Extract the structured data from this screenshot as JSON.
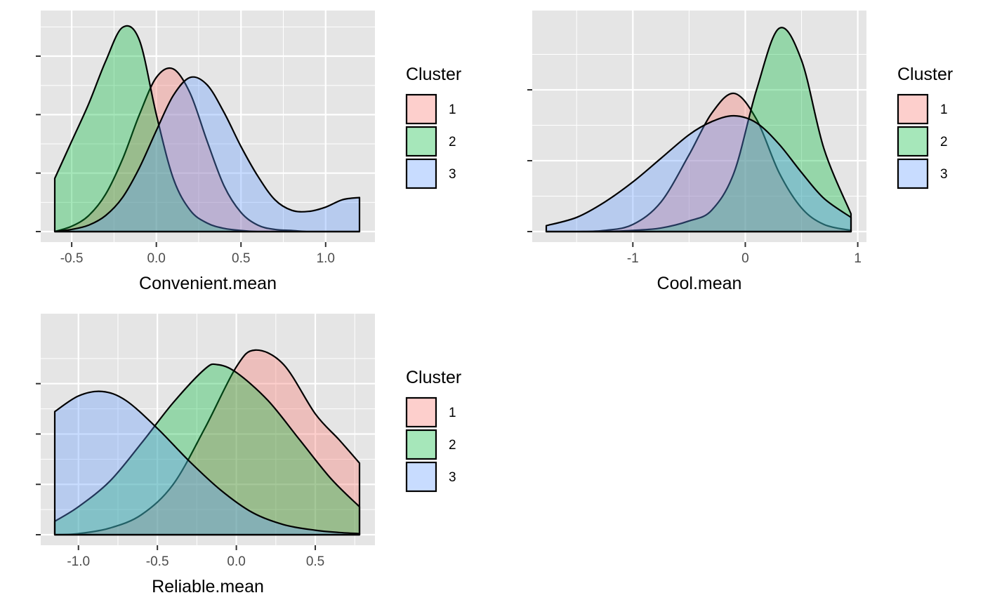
{
  "legend_title": "Cluster",
  "series_names": [
    "1",
    "2",
    "3"
  ],
  "colors": {
    "series": [
      "#F8766D",
      "#00BA38",
      "#619CFF"
    ],
    "panel_background": "#E5E5E5",
    "grid": "#FFFFFF",
    "outline": "#000000"
  },
  "chart_data": [
    {
      "type": "area",
      "subtype": "density",
      "title": "",
      "xlabel": "Convenient.mean",
      "ylabel": "",
      "xlim": [
        -0.6,
        1.2
      ],
      "ylim": [
        0,
        2.0
      ],
      "x_ticks": [
        -0.5,
        0.0,
        0.5,
        1.0
      ],
      "x_tick_labels": [
        "-0.5",
        "0.0",
        "0.5",
        "1.0"
      ],
      "y_ticks": [
        0,
        0.55,
        1.1,
        1.65
      ],
      "y_tick_labels": [
        "",
        "",
        "",
        ""
      ],
      "grid": true,
      "legend_position": "right",
      "series": [
        {
          "name": "1",
          "x": [
            -0.6,
            -0.5,
            -0.4,
            -0.3,
            -0.2,
            -0.1,
            0.0,
            0.1,
            0.2,
            0.3,
            0.4,
            0.5,
            0.6,
            0.7,
            0.8,
            0.9,
            1.0,
            1.1,
            1.2
          ],
          "y": [
            0.0,
            0.05,
            0.15,
            0.35,
            0.68,
            1.1,
            1.45,
            1.53,
            1.3,
            0.85,
            0.43,
            0.18,
            0.06,
            0.02,
            0.01,
            0.0,
            0.0,
            0.0,
            0.0
          ]
        },
        {
          "name": "2",
          "x": [
            -0.6,
            -0.5,
            -0.4,
            -0.3,
            -0.2,
            -0.1,
            0.0,
            0.1,
            0.2,
            0.3,
            0.4,
            0.5,
            0.6,
            0.7,
            0.8,
            0.9,
            1.0,
            1.1,
            1.2
          ],
          "y": [
            0.5,
            0.85,
            1.2,
            1.6,
            1.92,
            1.8,
            1.1,
            0.5,
            0.2,
            0.08,
            0.03,
            0.01,
            0.0,
            0.0,
            0.0,
            0.0,
            0.0,
            0.0,
            0.0
          ]
        },
        {
          "name": "3",
          "x": [
            -0.6,
            -0.5,
            -0.4,
            -0.3,
            -0.2,
            -0.1,
            0.0,
            0.1,
            0.2,
            0.3,
            0.4,
            0.5,
            0.6,
            0.7,
            0.8,
            0.9,
            1.0,
            1.1,
            1.2
          ],
          "y": [
            0.0,
            0.02,
            0.06,
            0.15,
            0.32,
            0.6,
            0.95,
            1.28,
            1.45,
            1.38,
            1.12,
            0.8,
            0.52,
            0.3,
            0.2,
            0.19,
            0.23,
            0.3,
            0.32
          ]
        }
      ]
    },
    {
      "type": "area",
      "subtype": "density",
      "title": "",
      "xlabel": "Cool.mean",
      "ylabel": "",
      "xlim": [
        -1.77,
        0.94
      ],
      "ylim": [
        0,
        1.8
      ],
      "x_ticks": [
        -1,
        0,
        1
      ],
      "x_tick_labels": [
        "-1",
        "0",
        "1"
      ],
      "y_ticks": [
        0,
        0.6,
        1.2
      ],
      "y_tick_labels": [
        "",
        "",
        ""
      ],
      "grid": true,
      "legend_position": "right",
      "series": [
        {
          "name": "1",
          "x": [
            -1.77,
            -1.5,
            -1.25,
            -1.0,
            -0.75,
            -0.5,
            -0.3,
            -0.1,
            0.1,
            0.3,
            0.5,
            0.7,
            0.94
          ],
          "y": [
            0.0,
            0.0,
            0.01,
            0.06,
            0.25,
            0.65,
            1.0,
            1.17,
            0.95,
            0.5,
            0.2,
            0.06,
            0.01
          ]
        },
        {
          "name": "2",
          "x": [
            -1.77,
            -1.5,
            -1.25,
            -1.0,
            -0.75,
            -0.5,
            -0.3,
            -0.1,
            0.1,
            0.3,
            0.5,
            0.7,
            0.94
          ],
          "y": [
            0.0,
            0.0,
            0.0,
            0.01,
            0.03,
            0.09,
            0.18,
            0.5,
            1.2,
            1.72,
            1.45,
            0.7,
            0.15
          ]
        },
        {
          "name": "3",
          "x": [
            -1.77,
            -1.5,
            -1.25,
            -1.0,
            -0.75,
            -0.5,
            -0.3,
            -0.1,
            0.1,
            0.3,
            0.5,
            0.7,
            0.94
          ],
          "y": [
            0.05,
            0.12,
            0.25,
            0.42,
            0.62,
            0.82,
            0.93,
            0.98,
            0.92,
            0.74,
            0.5,
            0.28,
            0.12
          ]
        }
      ]
    },
    {
      "type": "area",
      "subtype": "density",
      "title": "",
      "xlabel": "Reliable.mean",
      "ylabel": "",
      "xlim": [
        -1.15,
        0.78
      ],
      "ylim": [
        0,
        1.9
      ],
      "x_ticks": [
        -1.0,
        -0.5,
        0.0,
        0.5
      ],
      "x_tick_labels": [
        "-1.0",
        "-0.5",
        "0.0",
        "0.5"
      ],
      "y_ticks": [
        0,
        0.45,
        0.9,
        1.35
      ],
      "y_tick_labels": [
        "",
        "",
        "",
        ""
      ],
      "grid": true,
      "legend_position": "right",
      "series": [
        {
          "name": "1",
          "x": [
            -1.15,
            -1.0,
            -0.8,
            -0.6,
            -0.4,
            -0.2,
            0.0,
            0.12,
            0.3,
            0.5,
            0.65,
            0.78
          ],
          "y": [
            0.0,
            0.01,
            0.06,
            0.18,
            0.45,
            0.95,
            1.5,
            1.65,
            1.52,
            1.08,
            0.85,
            0.64
          ]
        },
        {
          "name": "2",
          "x": [
            -1.15,
            -1.0,
            -0.8,
            -0.6,
            -0.4,
            -0.2,
            -0.12,
            0.0,
            0.2,
            0.4,
            0.6,
            0.78
          ],
          "y": [
            0.12,
            0.25,
            0.48,
            0.82,
            1.18,
            1.48,
            1.52,
            1.45,
            1.2,
            0.85,
            0.5,
            0.25
          ]
        },
        {
          "name": "3",
          "x": [
            -1.15,
            -1.0,
            -0.85,
            -0.7,
            -0.5,
            -0.3,
            -0.1,
            0.1,
            0.3,
            0.5,
            0.65,
            0.78
          ],
          "y": [
            1.1,
            1.24,
            1.28,
            1.2,
            0.95,
            0.66,
            0.4,
            0.2,
            0.09,
            0.04,
            0.02,
            0.01
          ]
        }
      ]
    }
  ]
}
